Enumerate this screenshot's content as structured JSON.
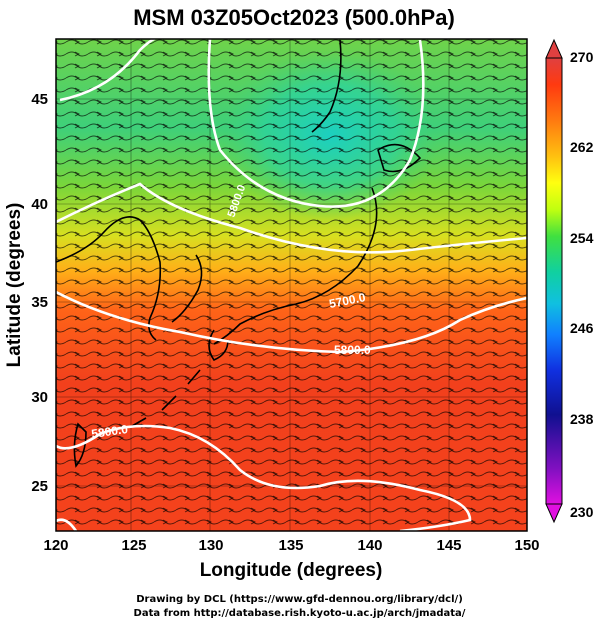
{
  "title": "MSM 03Z05Oct2023 (500.0hPa)",
  "map": {
    "xlabel": "Longitude (degrees)",
    "ylabel": "Latitude  (degrees)",
    "lon_range": [
      120,
      150
    ],
    "lat_range": [
      22.4,
      47.6
    ],
    "lon_ticks": [
      "120",
      "125",
      "130",
      "135",
      "140",
      "145",
      "150"
    ],
    "lat_ticks": [
      "45",
      "40",
      "35",
      "30",
      "25"
    ],
    "contour_labels": [
      "5700.0",
      "5800.0",
      "5800.0",
      "5800.0"
    ],
    "fill_quantity_range": [
      230,
      270
    ]
  },
  "colorbar": {
    "ticks": [
      "270",
      "262",
      "254",
      "246",
      "238",
      "230"
    ],
    "colors": [
      "#e04040",
      "#ff3a10",
      "#ff7a10",
      "#ffc010",
      "#ffff10",
      "#c0ff10",
      "#40e040",
      "#10d0a0",
      "#10c0e0",
      "#1080ff",
      "#1030e0",
      "#101090",
      "#8010c0",
      "#e010e0"
    ]
  },
  "credits": [
    "Drawing by DCL (https://www.gfd-dennou.org/library/dcl/)",
    "Data from http://database.rish.kyoto-u.ac.jp/arch/jmadata/"
  ]
}
